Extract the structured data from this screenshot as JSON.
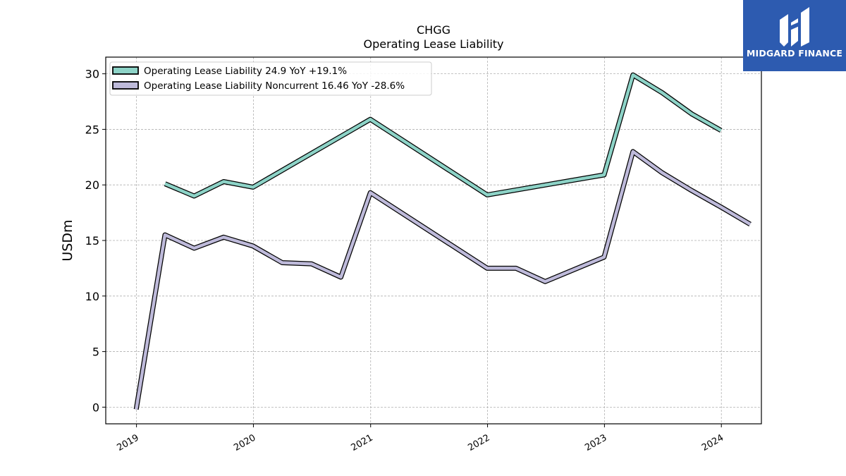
{
  "chart_data": {
    "type": "line",
    "title": "CHGG",
    "subtitle": "Operating Lease Liability",
    "ylabel": "USDm",
    "xlabel": "",
    "ylim": [
      -1.5,
      31.5
    ],
    "yticks": [
      0,
      5,
      10,
      15,
      20,
      25,
      30
    ],
    "xlim": [
      "2018-09-27",
      "2024-05-05"
    ],
    "xticks": [
      "2019",
      "2020",
      "2021",
      "2022",
      "2023",
      "2024"
    ],
    "grid": true,
    "legend_position": "top-left",
    "series": [
      {
        "name": "Operating Lease Liability  24.9 YoY +19.1%",
        "color": "#8dd3c7",
        "points": [
          [
            "2019-03-31",
            20.1
          ],
          [
            "2019-06-30",
            19.0
          ],
          [
            "2019-09-30",
            20.3
          ],
          [
            "2019-12-31",
            19.8
          ],
          [
            "2020-12-31",
            25.9
          ],
          [
            "2021-12-31",
            19.1
          ],
          [
            "2022-12-31",
            20.9
          ],
          [
            "2023-03-31",
            29.9
          ],
          [
            "2023-06-30",
            28.3
          ],
          [
            "2023-09-30",
            26.4
          ],
          [
            "2023-12-31",
            24.9
          ]
        ]
      },
      {
        "name": "Operating Lease Liability Noncurrent  16.46 YoY -28.6%",
        "color": "#bebada",
        "points": [
          [
            "2018-12-31",
            -0.2
          ],
          [
            "2019-03-31",
            15.5
          ],
          [
            "2019-06-30",
            14.3
          ],
          [
            "2019-09-30",
            15.3
          ],
          [
            "2019-12-31",
            14.5
          ],
          [
            "2020-03-31",
            13.0
          ],
          [
            "2020-06-30",
            12.9
          ],
          [
            "2020-09-30",
            11.7
          ],
          [
            "2020-12-31",
            19.3
          ],
          [
            "2021-12-31",
            12.5
          ],
          [
            "2022-03-31",
            12.5
          ],
          [
            "2022-06-30",
            11.3
          ],
          [
            "2022-12-31",
            13.5
          ],
          [
            "2023-03-31",
            23.0
          ],
          [
            "2023-06-30",
            21.1
          ],
          [
            "2023-09-30",
            19.5
          ],
          [
            "2023-12-31",
            18.0
          ],
          [
            "2024-03-31",
            16.46
          ]
        ]
      }
    ]
  },
  "logo": {
    "text": "MIDGARD FINANCE",
    "icon": "midgard-logo-icon",
    "color": "#2d5bb0"
  }
}
